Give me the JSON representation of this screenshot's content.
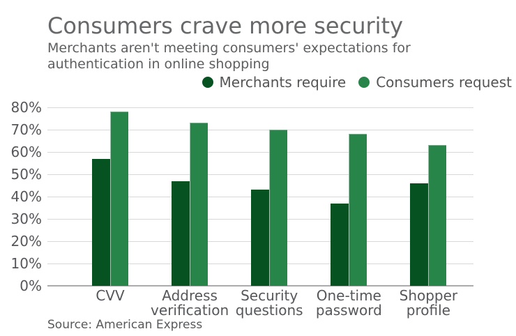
{
  "chart_data": {
    "type": "bar",
    "title": "Consumers crave more security",
    "subtitle": "Merchants aren't meeting consumers' expectations for authentication in online shopping",
    "source": "Source: American Express",
    "categories": [
      "CVV",
      "Address verification",
      "Security questions",
      "One-time password",
      "Shopper profile"
    ],
    "series": [
      {
        "name": "Merchants require",
        "color": "#065221",
        "values": [
          57,
          47,
          43,
          37,
          46
        ]
      },
      {
        "name": "Consumers request",
        "color": "#28854a",
        "values": [
          78,
          73,
          70,
          68,
          63
        ]
      }
    ],
    "xlabel": "",
    "ylabel": "",
    "ylim": [
      0,
      80
    ],
    "ytick_step": 10,
    "ytick_labels": [
      "80%",
      "70%",
      "60%",
      "50%",
      "40%",
      "30%",
      "20%",
      "10%",
      "0%"
    ],
    "grid": true,
    "legend_position": "top-right",
    "colors": {
      "grid": "#d8d8d8",
      "axis": "#ababab",
      "title_text": "#67686a",
      "body_text": "#56575a",
      "background": "#ffffff"
    }
  }
}
